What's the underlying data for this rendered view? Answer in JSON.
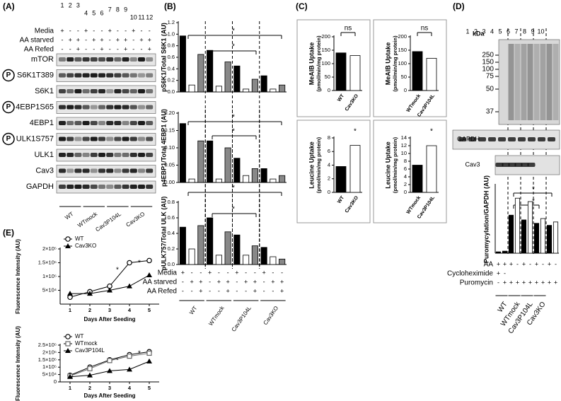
{
  "panel_labels": [
    "(A)",
    "(B)",
    "(C)",
    "(D)",
    "(E)"
  ],
  "panel_a": {
    "lanes": [
      1,
      2,
      3,
      4,
      5,
      6,
      7,
      8,
      9,
      10,
      11,
      12
    ],
    "treatments": [
      {
        "label": "Media",
        "signs": [
          "+",
          "-",
          "-",
          "+",
          "-",
          "-",
          "+",
          "-",
          "-",
          "+",
          "-",
          "-"
        ]
      },
      {
        "label": "AA starved",
        "signs": [
          "-",
          "+",
          "+",
          "-",
          "+",
          "+",
          "-",
          "+",
          "+",
          "-",
          "+",
          "+"
        ]
      },
      {
        "label": "AA Refed",
        "signs": [
          "-",
          "-",
          "+",
          "-",
          "-",
          "+",
          "-",
          "-",
          "+",
          "-",
          "-",
          "+"
        ]
      }
    ],
    "blots": [
      {
        "label": "mTOR"
      },
      {
        "label": "S6K1T389",
        "phospho": "P"
      },
      {
        "label": "S6K1"
      },
      {
        "label": "4EBP1S65",
        "phospho": "P"
      },
      {
        "label": "4EBP1"
      },
      {
        "label": "ULK1S757",
        "phospho": "P"
      },
      {
        "label": "ULK1"
      },
      {
        "label": "Cav3"
      },
      {
        "label": "GAPDH"
      }
    ],
    "groups": [
      "WT",
      "WTmock",
      "Cav3P104L",
      "Cav3KO"
    ]
  },
  "panel_b": {
    "treatments": [
      {
        "label": "Media",
        "signs": [
          "+",
          "-",
          "-",
          "+",
          "-",
          "-",
          "+",
          "-",
          "-",
          "+",
          "-",
          "-"
        ]
      },
      {
        "label": "AA starved",
        "signs": [
          "-",
          "+",
          "+",
          "-",
          "+",
          "+",
          "-",
          "+",
          "+",
          "-",
          "+",
          "+"
        ]
      },
      {
        "label": "AA Refed",
        "signs": [
          "-",
          "-",
          "+",
          "-",
          "-",
          "+",
          "-",
          "-",
          "+",
          "-",
          "-",
          "+"
        ]
      }
    ],
    "groups": [
      "WT",
      "WTmock",
      "Cav3P104L",
      "Cav3KO"
    ]
  },
  "panel_d": {
    "kda_label": "kDa",
    "kda_markers": [
      250,
      150,
      100,
      75,
      50,
      37
    ],
    "lanes": [
      1,
      2,
      3,
      4,
      5,
      6,
      7,
      8,
      9,
      10
    ],
    "blots": [
      "GAPDH",
      "Cav3"
    ],
    "treatments": [
      {
        "label": "AA",
        "signs": [
          "+",
          "+",
          "+",
          "-",
          "+",
          "-",
          "+",
          "-",
          "+",
          "-"
        ]
      },
      {
        "label": "Cycloheximide",
        "signs": [
          "+",
          "-",
          null,
          null,
          null,
          null,
          null,
          null,
          null,
          null
        ]
      },
      {
        "label": "Puromycin",
        "signs": [
          "-",
          "+",
          "+",
          "+",
          "+",
          "+",
          "+",
          "+",
          "+",
          "+"
        ]
      }
    ],
    "groups": [
      "WT",
      "WTmock",
      "Cav3P104L",
      "Cav3KO"
    ]
  },
  "chart_data": [
    {
      "type": "bar",
      "ylabel": "pS6K1/Total S6K1 (AU)",
      "ylim": [
        0,
        1.2
      ],
      "yticks": [
        {
          "value": 0,
          "label": "0.0"
        },
        0.2,
        0.4,
        0.6,
        0.8,
        {
          "value": 1,
          "label": "1.0"
        },
        1.2
      ],
      "values": [
        0.97,
        0.12,
        0.65,
        0.72,
        0.1,
        0.52,
        0.45,
        0.05,
        0.22,
        0.28,
        0.05,
        0.12
      ],
      "colors": [
        "#000000",
        "#ffffff",
        "#888888",
        "#000000",
        "#ffffff",
        "#888888",
        "#000000",
        "#ffffff",
        "#888888",
        "#000000",
        "#ffffff",
        "#888888"
      ],
      "annotations": [
        "*",
        "*"
      ]
    },
    {
      "type": "bar",
      "ylabel": "p4EBP1/Total 4EBP1 (AU)",
      "ylim": [
        0,
        0.2
      ],
      "yticks": [
        {
          "value": 0,
          "label": "0.00"
        },
        {
          "value": 0.05,
          "label": "0.05"
        },
        {
          "value": 0.1,
          "label": "0.10"
        },
        {
          "value": 0.15,
          "label": "0.15"
        },
        {
          "value": 0.2,
          "label": "0.20"
        }
      ],
      "values": [
        0.17,
        0.01,
        0.12,
        0.12,
        0.01,
        0.1,
        0.07,
        0.02,
        0.04,
        0.04,
        0.01,
        0.02
      ],
      "colors": [
        "#000000",
        "#ffffff",
        "#888888",
        "#000000",
        "#ffffff",
        "#888888",
        "#000000",
        "#ffffff",
        "#888888",
        "#000000",
        "#ffffff",
        "#888888"
      ],
      "annotations": [
        "*",
        "*"
      ]
    },
    {
      "type": "bar",
      "ylabel": "pULK757/Total ULK (AU)",
      "ylim": [
        0,
        0.8
      ],
      "yticks": [
        {
          "value": 0,
          "label": "0.0"
        },
        0.2,
        0.4,
        0.6,
        0.8
      ],
      "values": [
        0.48,
        0.2,
        0.5,
        0.6,
        0.12,
        0.42,
        0.38,
        0.12,
        0.24,
        0.22,
        0.1,
        0.07
      ],
      "colors": [
        "#000000",
        "#ffffff",
        "#888888",
        "#000000",
        "#ffffff",
        "#888888",
        "#000000",
        "#ffffff",
        "#888888",
        "#000000",
        "#ffffff",
        "#888888"
      ],
      "annotations": [
        "*",
        "*"
      ]
    },
    {
      "type": "bar",
      "ylabel": "MeAIB Uptake",
      "ylabel_unit": "(pmol/min/mg protein)",
      "categories": [
        "WT",
        "Cav3KO"
      ],
      "values": [
        140,
        130
      ],
      "colors": [
        "#000000",
        "#ffffff"
      ],
      "ylim": [
        0,
        200
      ],
      "yticks": [
        0,
        50,
        100,
        150,
        200
      ],
      "annotations": [
        "ns"
      ]
    },
    {
      "type": "bar",
      "ylabel": "MeAIB Uptake",
      "ylabel_unit": "(pmol/min/mg protein)",
      "categories": [
        "WTmock",
        "Cav3P104L"
      ],
      "values": [
        145,
        120
      ],
      "colors": [
        "#000000",
        "#ffffff"
      ],
      "ylim": [
        0,
        200
      ],
      "yticks": [
        0,
        50,
        100,
        150,
        200
      ],
      "annotations": [
        "ns"
      ]
    },
    {
      "type": "bar",
      "ylabel": "Leucine Uptake",
      "ylabel_unit": "(pmol/min/mg protein)",
      "categories": [
        "WT",
        "Cav3KO"
      ],
      "values": [
        3.8,
        6.9
      ],
      "colors": [
        "#000000",
        "#ffffff"
      ],
      "ylim": [
        0,
        8
      ],
      "yticks": [
        0,
        2,
        4,
        6,
        8
      ],
      "annotations": [
        "*"
      ]
    },
    {
      "type": "bar",
      "ylabel": "Leucine Uptake",
      "ylabel_unit": "(pmol/min/mg protein)",
      "categories": [
        "WTmock",
        "Cav3P104L"
      ],
      "values": [
        7,
        12
      ],
      "colors": [
        "#000000",
        "#ffffff"
      ],
      "ylim": [
        0,
        14
      ],
      "yticks": [
        0,
        2,
        4,
        6,
        8,
        10,
        12,
        14
      ],
      "annotations": [
        "*"
      ]
    },
    {
      "type": "bar",
      "ylabel": "Puromycylation/GAPDH (AU)",
      "ylim": [
        0,
        10
      ],
      "values": [
        0.2,
        0.3,
        5.6,
        8.1,
        4.9,
        7.6,
        4.4,
        5.1,
        4.1,
        4.6
      ],
      "colors": [
        "#000000",
        "#000000",
        "#000000",
        "#ffffff",
        "#000000",
        "#ffffff",
        "#000000",
        "#ffffff",
        "#000000",
        "#ffffff"
      ],
      "annotations": [
        "*",
        "*"
      ]
    },
    {
      "type": "line",
      "ylabel": "Fluorescence Intensity (AU)",
      "xlabel": "Days After Seeding",
      "x": [
        1,
        2,
        3,
        4,
        5
      ],
      "xlim": [
        0.5,
        5.5
      ],
      "xticks": [
        1,
        2,
        3,
        4,
        5
      ],
      "ylim": [
        0,
        200000
      ],
      "yticks": [
        {
          "value": 50000,
          "label": "5×10⁴"
        },
        {
          "value": 100000,
          "label": "1×10⁵"
        },
        {
          "value": 150000,
          "label": "1.5×10⁵"
        },
        {
          "value": 200000,
          "label": "2×10⁵"
        }
      ],
      "series": [
        {
          "name": "WT",
          "color": "#000000",
          "marker": "circle-open",
          "values": [
            25000,
            45000,
            65000,
            150000,
            158000
          ]
        },
        {
          "name": "Cav3KO",
          "color": "#000000",
          "marker": "triangle",
          "values": [
            38000,
            38000,
            50000,
            65000,
            105000
          ]
        }
      ],
      "annotations": [
        "*",
        "*"
      ]
    },
    {
      "type": "line",
      "ylabel": "Fluorescence Intensity (AU)",
      "xlabel": "Days After Seeding",
      "x": [
        1,
        2,
        3,
        4,
        5
      ],
      "xlim": [
        0.5,
        5.5
      ],
      "xticks": [
        1,
        2,
        3,
        4,
        5
      ],
      "ylim": [
        0,
        250000
      ],
      "yticks": [
        0,
        {
          "value": 50000,
          "label": "5×10⁴"
        },
        {
          "value": 100000,
          "label": "1×10⁵"
        },
        {
          "value": 150000,
          "label": "1.5×10⁵"
        },
        {
          "value": 200000,
          "label": "2×10⁵"
        },
        {
          "value": 250000,
          "label": "2.5×10⁵"
        }
      ],
      "series": [
        {
          "name": "WT",
          "color": "#000000",
          "marker": "circle-open",
          "values": [
            45000,
            100000,
            150000,
            185000,
            205000
          ]
        },
        {
          "name": "WTmock",
          "color": "#666666",
          "marker": "square-open",
          "values": [
            40000,
            90000,
            145000,
            175000,
            195000
          ]
        },
        {
          "name": "Cav3P104L",
          "color": "#000000",
          "marker": "triangle",
          "values": [
            35000,
            45000,
            75000,
            85000,
            140000
          ]
        }
      ],
      "annotations": [
        "*",
        "*"
      ]
    }
  ]
}
